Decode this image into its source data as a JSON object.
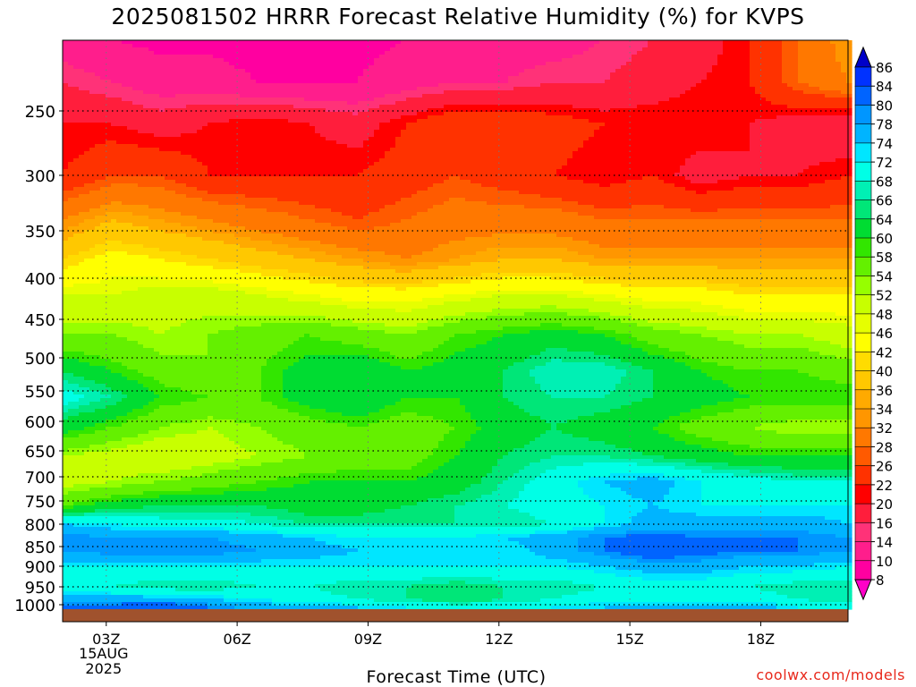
{
  "title": "2025081502 HRRR Forecast Relative Humidity (%) for KVPS",
  "credit": "coolwx.com/models",
  "chart_data": {
    "type": "heatmap",
    "title": "2025081502 HRRR Forecast Relative Humidity (%) for KVPS",
    "xlabel": "Forecast Time (UTC)",
    "ylabel": "",
    "x_ticks": [
      {
        "hour": 3,
        "label": "03Z",
        "sub1": "15AUG",
        "sub2": "2025"
      },
      {
        "hour": 6,
        "label": "06Z"
      },
      {
        "hour": 9,
        "label": "09Z"
      },
      {
        "hour": 12,
        "label": "12Z"
      },
      {
        "hour": 15,
        "label": "15Z"
      },
      {
        "hour": 18,
        "label": "18Z"
      }
    ],
    "xlim": [
      2,
      20
    ],
    "y_ticks": [
      250,
      300,
      350,
      400,
      450,
      500,
      550,
      600,
      650,
      700,
      750,
      800,
      850,
      900,
      950,
      1000
    ],
    "ylim": [
      1013,
      200
    ],
    "grid": true,
    "colorbar_levels": [
      8,
      10,
      14,
      16,
      20,
      22,
      26,
      28,
      32,
      34,
      36,
      40,
      42,
      46,
      48,
      52,
      54,
      58,
      60,
      64,
      66,
      68,
      72,
      74,
      78,
      80,
      84,
      86
    ],
    "colorbar_colors": [
      "#ff00a0",
      "#ff1e8c",
      "#ff3278",
      "#ff1e3c",
      "#ff0000",
      "#ff3200",
      "#ff5a00",
      "#ff7800",
      "#ff9600",
      "#ffaa00",
      "#ffc800",
      "#ffdc00",
      "#ffff00",
      "#e6ff00",
      "#c8ff00",
      "#96ff00",
      "#64f000",
      "#32e600",
      "#00dc32",
      "#00e678",
      "#00f0b4",
      "#00ffe6",
      "#00e6ff",
      "#00b4ff",
      "#0096ff",
      "#0064ff",
      "#0032ff"
    ],
    "profiles": [
      {
        "p": 200,
        "rh": [
          12,
          10,
          9,
          9,
          8,
          8,
          9,
          10,
          12,
          12,
          12,
          14,
          16,
          18,
          22,
          28,
          34
        ]
      },
      {
        "p": 230,
        "rh": [
          16,
          14,
          12,
          12,
          10,
          10,
          10,
          12,
          14,
          14,
          16,
          16,
          18,
          20,
          22,
          28,
          32
        ]
      },
      {
        "p": 260,
        "rh": [
          20,
          20,
          18,
          20,
          22,
          20,
          18,
          22,
          26,
          26,
          24,
          22,
          22,
          22,
          20,
          18,
          16
        ]
      },
      {
        "p": 300,
        "rh": [
          22,
          26,
          26,
          22,
          22,
          22,
          22,
          24,
          26,
          24,
          22,
          20,
          22,
          18,
          20,
          20,
          22
        ]
      },
      {
        "p": 340,
        "rh": [
          32,
          36,
          34,
          32,
          30,
          28,
          26,
          28,
          30,
          30,
          30,
          28,
          28,
          28,
          28,
          28,
          28
        ]
      },
      {
        "p": 380,
        "rh": [
          40,
          44,
          42,
          40,
          38,
          36,
          34,
          32,
          34,
          36,
          36,
          34,
          34,
          34,
          34,
          34,
          34
        ]
      },
      {
        "p": 420,
        "rh": [
          48,
          48,
          50,
          50,
          48,
          46,
          44,
          44,
          46,
          48,
          48,
          46,
          44,
          44,
          42,
          42,
          42
        ]
      },
      {
        "p": 470,
        "rh": [
          54,
          54,
          52,
          54,
          56,
          58,
          56,
          54,
          58,
          60,
          62,
          60,
          56,
          54,
          52,
          52,
          50
        ]
      },
      {
        "p": 520,
        "rh": [
          64,
          60,
          56,
          54,
          58,
          62,
          64,
          60,
          62,
          64,
          68,
          68,
          64,
          60,
          58,
          58,
          56
        ]
      },
      {
        "p": 560,
        "rh": [
          70,
          66,
          60,
          58,
          58,
          62,
          64,
          60,
          60,
          64,
          66,
          66,
          64,
          62,
          60,
          60,
          60
        ]
      },
      {
        "p": 610,
        "rh": [
          62,
          58,
          54,
          52,
          54,
          56,
          58,
          56,
          58,
          62,
          64,
          62,
          60,
          56,
          54,
          52,
          52
        ]
      },
      {
        "p": 660,
        "rh": [
          52,
          50,
          48,
          50,
          52,
          54,
          56,
          56,
          60,
          64,
          66,
          66,
          64,
          62,
          60,
          60,
          60
        ]
      },
      {
        "p": 710,
        "rh": [
          50,
          52,
          54,
          56,
          58,
          60,
          60,
          60,
          62,
          66,
          70,
          74,
          76,
          72,
          70,
          68,
          68
        ]
      },
      {
        "p": 760,
        "rh": [
          58,
          62,
          64,
          64,
          64,
          62,
          62,
          64,
          66,
          68,
          70,
          72,
          74,
          72,
          72,
          72,
          72
        ]
      },
      {
        "p": 800,
        "rh": [
          74,
          72,
          70,
          70,
          68,
          66,
          66,
          66,
          66,
          66,
          68,
          72,
          76,
          76,
          76,
          76,
          74
        ]
      },
      {
        "p": 830,
        "rh": [
          80,
          78,
          78,
          78,
          76,
          74,
          72,
          72,
          72,
          74,
          76,
          80,
          82,
          80,
          80,
          80,
          78
        ]
      },
      {
        "p": 860,
        "rh": [
          78,
          80,
          80,
          80,
          78,
          76,
          74,
          72,
          72,
          72,
          76,
          80,
          84,
          82,
          80,
          80,
          78
        ]
      },
      {
        "p": 900,
        "rh": [
          72,
          72,
          72,
          72,
          72,
          72,
          72,
          72,
          72,
          72,
          72,
          74,
          76,
          76,
          74,
          74,
          72
        ]
      },
      {
        "p": 950,
        "rh": [
          70,
          68,
          66,
          66,
          68,
          68,
          66,
          66,
          64,
          66,
          66,
          68,
          70,
          70,
          68,
          66,
          66
        ]
      },
      {
        "p": 985,
        "rh": [
          76,
          76,
          76,
          74,
          72,
          70,
          68,
          66,
          64,
          66,
          68,
          70,
          70,
          70,
          70,
          68,
          66
        ]
      },
      {
        "p": 1005,
        "rh": [
          80,
          82,
          84,
          80,
          76,
          74,
          74,
          72,
          70,
          70,
          72,
          74,
          76,
          76,
          76,
          72,
          70
        ]
      }
    ],
    "ground_color": "#a0522d"
  },
  "colorbar_labels": [
    "86",
    "84",
    "80",
    "78",
    "74",
    "72",
    "68",
    "66",
    "64",
    "60",
    "58",
    "54",
    "52",
    "48",
    "46",
    "42",
    "40",
    "36",
    "34",
    "32",
    "28",
    "26",
    "22",
    "20",
    "16",
    "14",
    "10",
    "8"
  ]
}
